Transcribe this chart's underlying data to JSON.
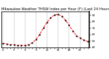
{
  "title": "Milwaukee Weather THSW Index per Hour (F) (Last 24 Hours)",
  "x_hours": [
    0,
    1,
    2,
    3,
    4,
    5,
    6,
    7,
    8,
    9,
    10,
    11,
    12,
    13,
    14,
    15,
    16,
    17,
    18,
    19,
    20,
    21,
    22,
    23
  ],
  "y_values": [
    46,
    45,
    44,
    44,
    43,
    43,
    43,
    44,
    47,
    52,
    60,
    70,
    79,
    86,
    90,
    91,
    88,
    82,
    74,
    65,
    58,
    54,
    51,
    49
  ],
  "line_color": "#FF0000",
  "marker_color": "#000000",
  "bg_color": "#ffffff",
  "grid_color": "#888888",
  "title_color": "#000000",
  "ylim": [
    40,
    95
  ],
  "xlim": [
    -0.5,
    23.5
  ],
  "yticks": [
    40,
    50,
    60,
    70,
    80,
    90
  ],
  "ytick_labels": [
    "40",
    "50",
    "60",
    "70",
    "80",
    "90"
  ],
  "grid_x_positions": [
    0,
    3,
    6,
    9,
    12,
    15,
    18,
    21
  ],
  "title_fontsize": 3.8,
  "tick_fontsize": 3.0,
  "linewidth": 0.7,
  "markersize": 1.4
}
